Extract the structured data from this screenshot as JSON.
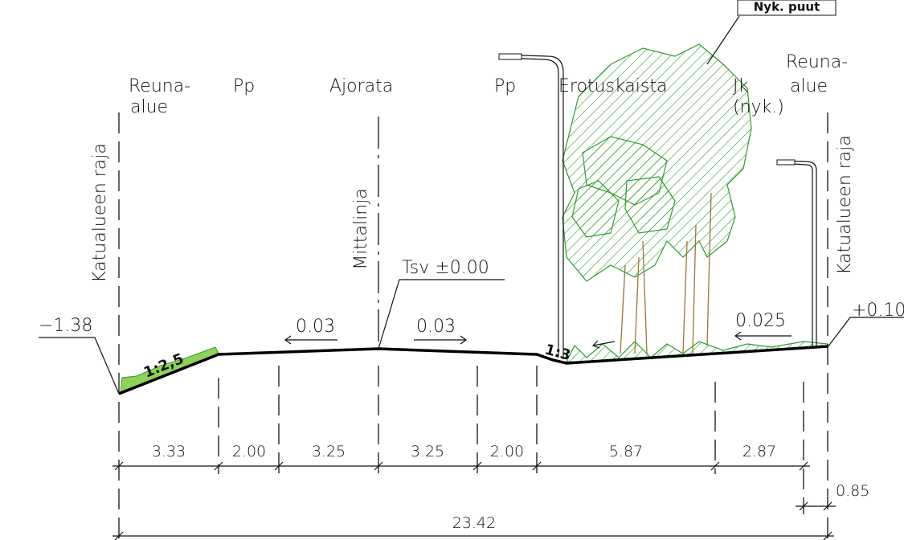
{
  "callout": "Nyk. puut",
  "zones": [
    {
      "label": "Reuna-",
      "sub": "alue"
    },
    {
      "label": "Pp"
    },
    {
      "label": "Ajorata"
    },
    {
      "label": "Pp"
    },
    {
      "label": "Erotuskaista"
    },
    {
      "label": "Jk",
      "sub": "(nyk.)"
    },
    {
      "label": "Reuna-",
      "sub": "alue"
    }
  ],
  "boundary_labels": [
    "Katualueen raja",
    "Katualueen raja"
  ],
  "center_line": "Mittalinja",
  "levels": [
    "−1.38",
    "Tsv ±0.00",
    "+0.10"
  ],
  "slopes": [
    "0.03",
    "0.03",
    "0.025"
  ],
  "gradients": [
    "1:2,5",
    "1:3"
  ],
  "dimensions": [
    "3.33",
    "2.00",
    "3.25",
    "3.25",
    "2.00",
    "5.87",
    "2.87"
  ],
  "offset": "0.85",
  "total": "23.42"
}
